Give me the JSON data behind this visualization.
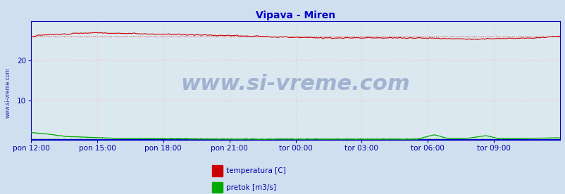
{
  "title": "Vipava - Miren",
  "title_color": "#0000cc",
  "title_fontsize": 10,
  "bg_color": "#d0dff0",
  "plot_bg_color": "#dce8f0",
  "grid_color_h": "#ffaaaa",
  "grid_color_v": "#ffbbbb",
  "yticks": [
    10,
    20
  ],
  "ylim": [
    0,
    30
  ],
  "xlim": [
    0,
    288
  ],
  "x_tick_positions": [
    0,
    36,
    72,
    108,
    144,
    180,
    216,
    252
  ],
  "x_tick_labels": [
    "pon 12:00",
    "pon 15:00",
    "pon 18:00",
    "pon 21:00",
    "tor 00:00",
    "tor 03:00",
    "tor 06:00",
    "tor 09:00"
  ],
  "tick_label_color": "#0000aa",
  "tick_label_fontsize": 7.5,
  "watermark": "www.si-vreme.com",
  "watermark_color": "#1a3a8a",
  "watermark_fontsize": 22,
  "watermark_alpha": 0.3,
  "legend_entries": [
    "temperatura [C]",
    "pretok [m3/s]"
  ],
  "legend_colors": [
    "#cc0000",
    "#00aa00"
  ],
  "ylabel_text": "www.si-vreme.com",
  "temp_color": "#cc0000",
  "pretok_color": "#00aa00",
  "visina_color": "#0000cc",
  "spine_color": "#0000bb",
  "temp_avg": 26.2,
  "pretok_avg": 0.45
}
